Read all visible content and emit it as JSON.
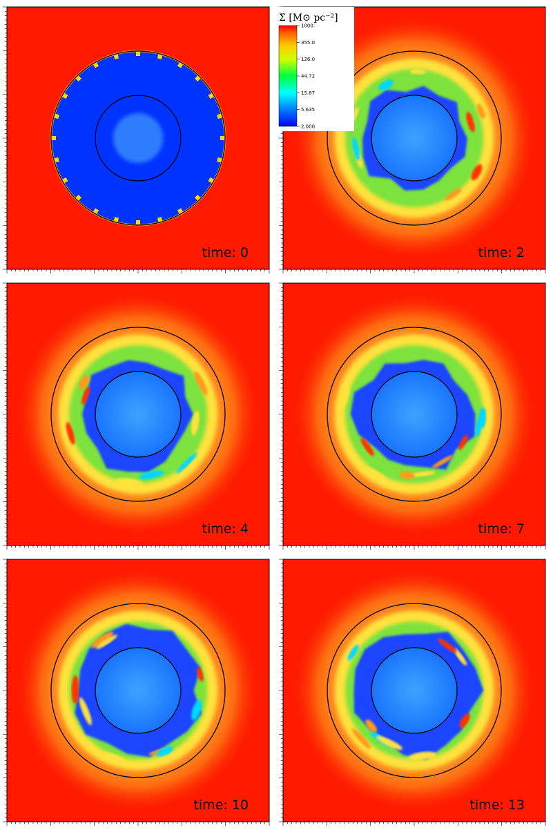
{
  "colorbar": {
    "title": "Σ [M⊙ pc⁻²]",
    "ticks": [
      "1000.",
      "355.0",
      "126.0",
      "44.72",
      "15.87",
      "5.635",
      "2.000"
    ]
  },
  "panels": [
    {
      "label": "time: 0"
    },
    {
      "label": "time: 2"
    },
    {
      "label": "time: 4"
    },
    {
      "label": "time: 7"
    },
    {
      "label": "time: 10"
    },
    {
      "label": "time: 13"
    }
  ],
  "colors": {
    "high": "#ff1a00",
    "orange": "#ff9a1a",
    "yellow": "#ffe23c",
    "green": "#7ce23c",
    "cyan": "#00d8ff",
    "blue_void": "#0033ff",
    "inner_disk": "#2a90ff"
  }
}
